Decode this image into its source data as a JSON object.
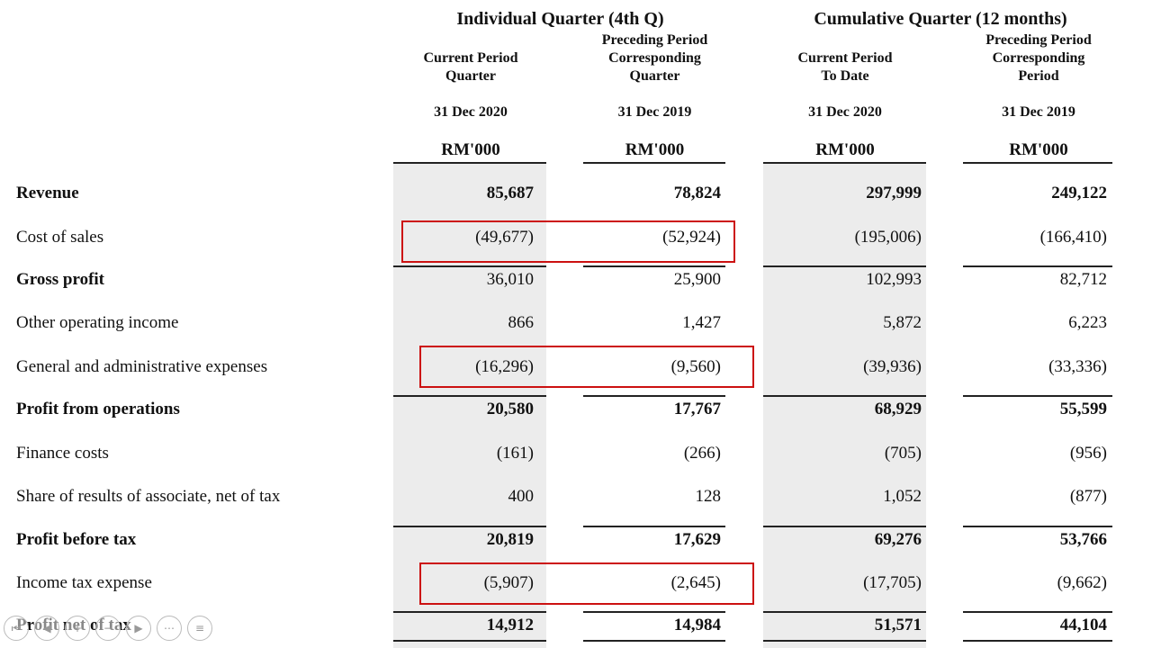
{
  "header": {
    "group1": "Individual Quarter (4th Q)",
    "group2": "Cumulative Quarter (12 months)",
    "cols": [
      {
        "line1": "",
        "line2": "Current Period",
        "line3": "Quarter",
        "date": "31 Dec 2020",
        "unit": "RM'000"
      },
      {
        "line1": "Preceding Period",
        "line2": "Corresponding",
        "line3": "Quarter",
        "date": "31 Dec 2019",
        "unit": "RM'000"
      },
      {
        "line1": "",
        "line2": "Current Period",
        "line3": "To Date",
        "date": "31 Dec 2020",
        "unit": "RM'000"
      },
      {
        "line1": "Preceding Period",
        "line2": "Corresponding",
        "line3": "Period",
        "date": "31 Dec 2019",
        "unit": "RM'000"
      }
    ]
  },
  "rows": [
    {
      "label": "Revenue",
      "values": [
        "85,687",
        "78,824",
        "297,999",
        "249,122"
      ],
      "bold": true
    },
    {
      "label": "Cost of sales",
      "values": [
        "(49,677)",
        "(52,924)",
        "(195,006)",
        "(166,410)"
      ],
      "bold": false,
      "highlighted": true
    },
    {
      "label": "Gross profit",
      "values": [
        "36,010",
        "25,900",
        "102,993",
        "82,712"
      ],
      "bold": true,
      "value_bold": false
    },
    {
      "label": "Other operating income",
      "values": [
        "866",
        "1,427",
        "5,872",
        "6,223"
      ],
      "bold": false
    },
    {
      "label": "General and administrative expenses",
      "values": [
        "(16,296)",
        "(9,560)",
        "(39,936)",
        "(33,336)"
      ],
      "bold": false,
      "highlighted": true
    },
    {
      "label": "Profit from operations",
      "values": [
        "20,580",
        "17,767",
        "68,929",
        "55,599"
      ],
      "bold": true
    },
    {
      "label": "Finance costs",
      "values": [
        "(161)",
        "(266)",
        "(705)",
        "(956)"
      ],
      "bold": false
    },
    {
      "label": "Share of results of associate, net of tax",
      "values": [
        "400",
        "128",
        "1,052",
        "(877)"
      ],
      "bold": false
    },
    {
      "label": "Profit before tax",
      "values": [
        "20,819",
        "17,629",
        "69,276",
        "53,766"
      ],
      "bold": true
    },
    {
      "label": "Income tax expense",
      "values": [
        "(5,907)",
        "(2,645)",
        "(17,705)",
        "(9,662)"
      ],
      "bold": false,
      "highlighted": true
    },
    {
      "label": "Profit net of tax",
      "values": [
        "14,912",
        "14,984",
        "51,571",
        "44,104"
      ],
      "bold": true
    }
  ],
  "colors": {
    "highlight": "#cc1111",
    "shade": "#ececec"
  }
}
